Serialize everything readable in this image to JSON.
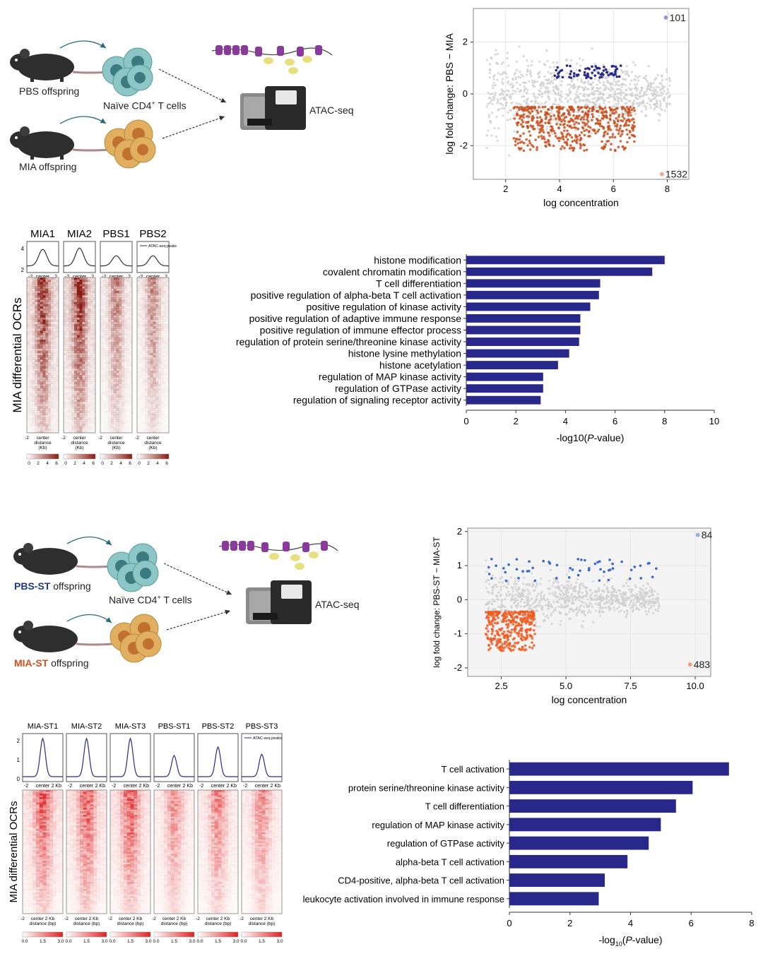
{
  "panel_a": {
    "pbs_label": "PBS offspring",
    "mia_label": "MIA offspring",
    "cells_label": "Naïve CD4",
    "cells_sup": "+",
    "cells_suffix": " T cells",
    "assay_label": "ATAC-seq"
  },
  "panel_b": {
    "pbs_label_colored": "PBS-ST",
    "pbs_label_rest": " offspring",
    "mia_label_colored": "MIA-ST",
    "mia_label_rest": " offspring",
    "cells_label": "Naïve CD4",
    "cells_sup": "+",
    "cells_suffix": " T cells",
    "assay_label": "ATAC-seq",
    "colors": {
      "pbs": "#1f3a8a",
      "mia": "#d4501f"
    }
  },
  "heatmap_a": {
    "samples": [
      "MIA1",
      "MIA2",
      "PBS1",
      "PBS2"
    ],
    "ylabel": "MIA differential OCRs",
    "legend_text": "ATAC-seq peaks",
    "profile_ticks": [
      "4",
      "2"
    ],
    "center_label": "center",
    "edge_left": "-2",
    "edge_right": "2",
    "bottom_label": [
      "center",
      "distance",
      "(Kb)"
    ],
    "colorbar_ticks": [
      "0",
      "2",
      "4",
      "6"
    ],
    "color": "#8b1a10"
  },
  "heatmap_b": {
    "samples": [
      "MIA-ST1",
      "MIA-ST2",
      "MIA-ST3",
      "PBS-ST1",
      "PBS-ST2",
      "PBS-ST3"
    ],
    "ylabel": "MIA differential OCRs",
    "legend_text": "ATAC-seq peaks",
    "profile_ticks": [
      "2",
      "1",
      "0"
    ],
    "center_label": "center",
    "edge_left": "-2",
    "edge_right": "2 Kb",
    "bottom_label": [
      "center  2 Kb",
      "distance (bp)"
    ],
    "colorbar_ticks": [
      "0.0",
      "1.5",
      "3.0"
    ],
    "color": "#e02020"
  },
  "chart_data": [
    {
      "type": "scatter",
      "name": "ma_plot_a",
      "xlabel": "log concentration",
      "ylabel": "log fold change: PBS − MIA",
      "xlim": [
        0.8,
        8.8
      ],
      "ylim": [
        -3.3,
        3.3
      ],
      "xticks": [
        2,
        4,
        6,
        8
      ],
      "yticks": [
        2,
        0,
        -2
      ],
      "grid": true,
      "annotations": [
        {
          "text": "101",
          "x": 7.95,
          "y": 2.95,
          "color": "#9a9ad0"
        },
        {
          "text": "1532",
          "x": 7.8,
          "y": -3.1,
          "color": "#e0b0a0"
        }
      ],
      "colors": {
        "up": "#2a2a8a",
        "down": "#c8501f",
        "ns": "#cfcfcf"
      }
    },
    {
      "type": "bar",
      "name": "go_bar_a",
      "orientation": "horizontal",
      "categories": [
        "histone modification",
        "covalent chromatin modification",
        "T cell differentiation",
        "positive regulation of alpha-beta T cell activation",
        "positive regulation of kinase activity",
        "positive regulation of adaptive immune response",
        "positive regulation of immune effector process",
        "regulation of protein serine/threonine kinase activity",
        "histone lysine methylation",
        "histone acetylation",
        "regulation of MAP kinase activity",
        "regulation of GTPase activity",
        "regulation of signaling receptor activity"
      ],
      "values": [
        8.0,
        7.5,
        5.4,
        5.35,
        5.0,
        4.6,
        4.6,
        4.55,
        4.15,
        3.7,
        3.1,
        3.1,
        3.0
      ],
      "xlabel_parts": [
        "-log10(",
        "P",
        "-value)"
      ],
      "xlim": [
        0,
        10
      ],
      "xticks": [
        0,
        2,
        4,
        6,
        8,
        10
      ],
      "color": "#28288a"
    },
    {
      "type": "scatter",
      "name": "ma_plot_b",
      "xlabel": "log concentration",
      "ylabel": "log fold change: PBS-ST − MIA-ST",
      "xlim": [
        1.2,
        10.6
      ],
      "ylim": [
        -2.25,
        2.1
      ],
      "xticks": [
        "2.5",
        "5.0",
        "7.5",
        "10.0"
      ],
      "yticks": [
        2,
        1,
        0,
        -1,
        -2
      ],
      "grid": true,
      "annotations": [
        {
          "text": "84",
          "x": 10.1,
          "y": 1.9,
          "color": "#9ab0e0"
        },
        {
          "text": "483",
          "x": 9.8,
          "y": -1.9,
          "color": "#f0a080"
        }
      ],
      "colors": {
        "up": "#3a6ad0",
        "down": "#f05a20",
        "ns": "#cfcfcf"
      }
    },
    {
      "type": "bar",
      "name": "go_bar_b",
      "orientation": "horizontal",
      "categories": [
        "T cell activation",
        "protein serine/threonine kinase activity",
        "T cell differentiation",
        "regulation of MAP kinase activity",
        "regulation of GTPase activity",
        "alpha-beta T cell activation",
        "CD4-positive, alpha-beta T cell activation",
        "leukocyte activation involved in immune response"
      ],
      "values": [
        7.25,
        6.05,
        5.5,
        5.0,
        4.6,
        3.9,
        3.15,
        2.95
      ],
      "xlabel_parts": [
        "-log",
        "10",
        "(",
        "P",
        "-value)"
      ],
      "xlim": [
        0,
        8
      ],
      "xticks": [
        0,
        2,
        4,
        6,
        8
      ],
      "color": "#28288a"
    }
  ]
}
